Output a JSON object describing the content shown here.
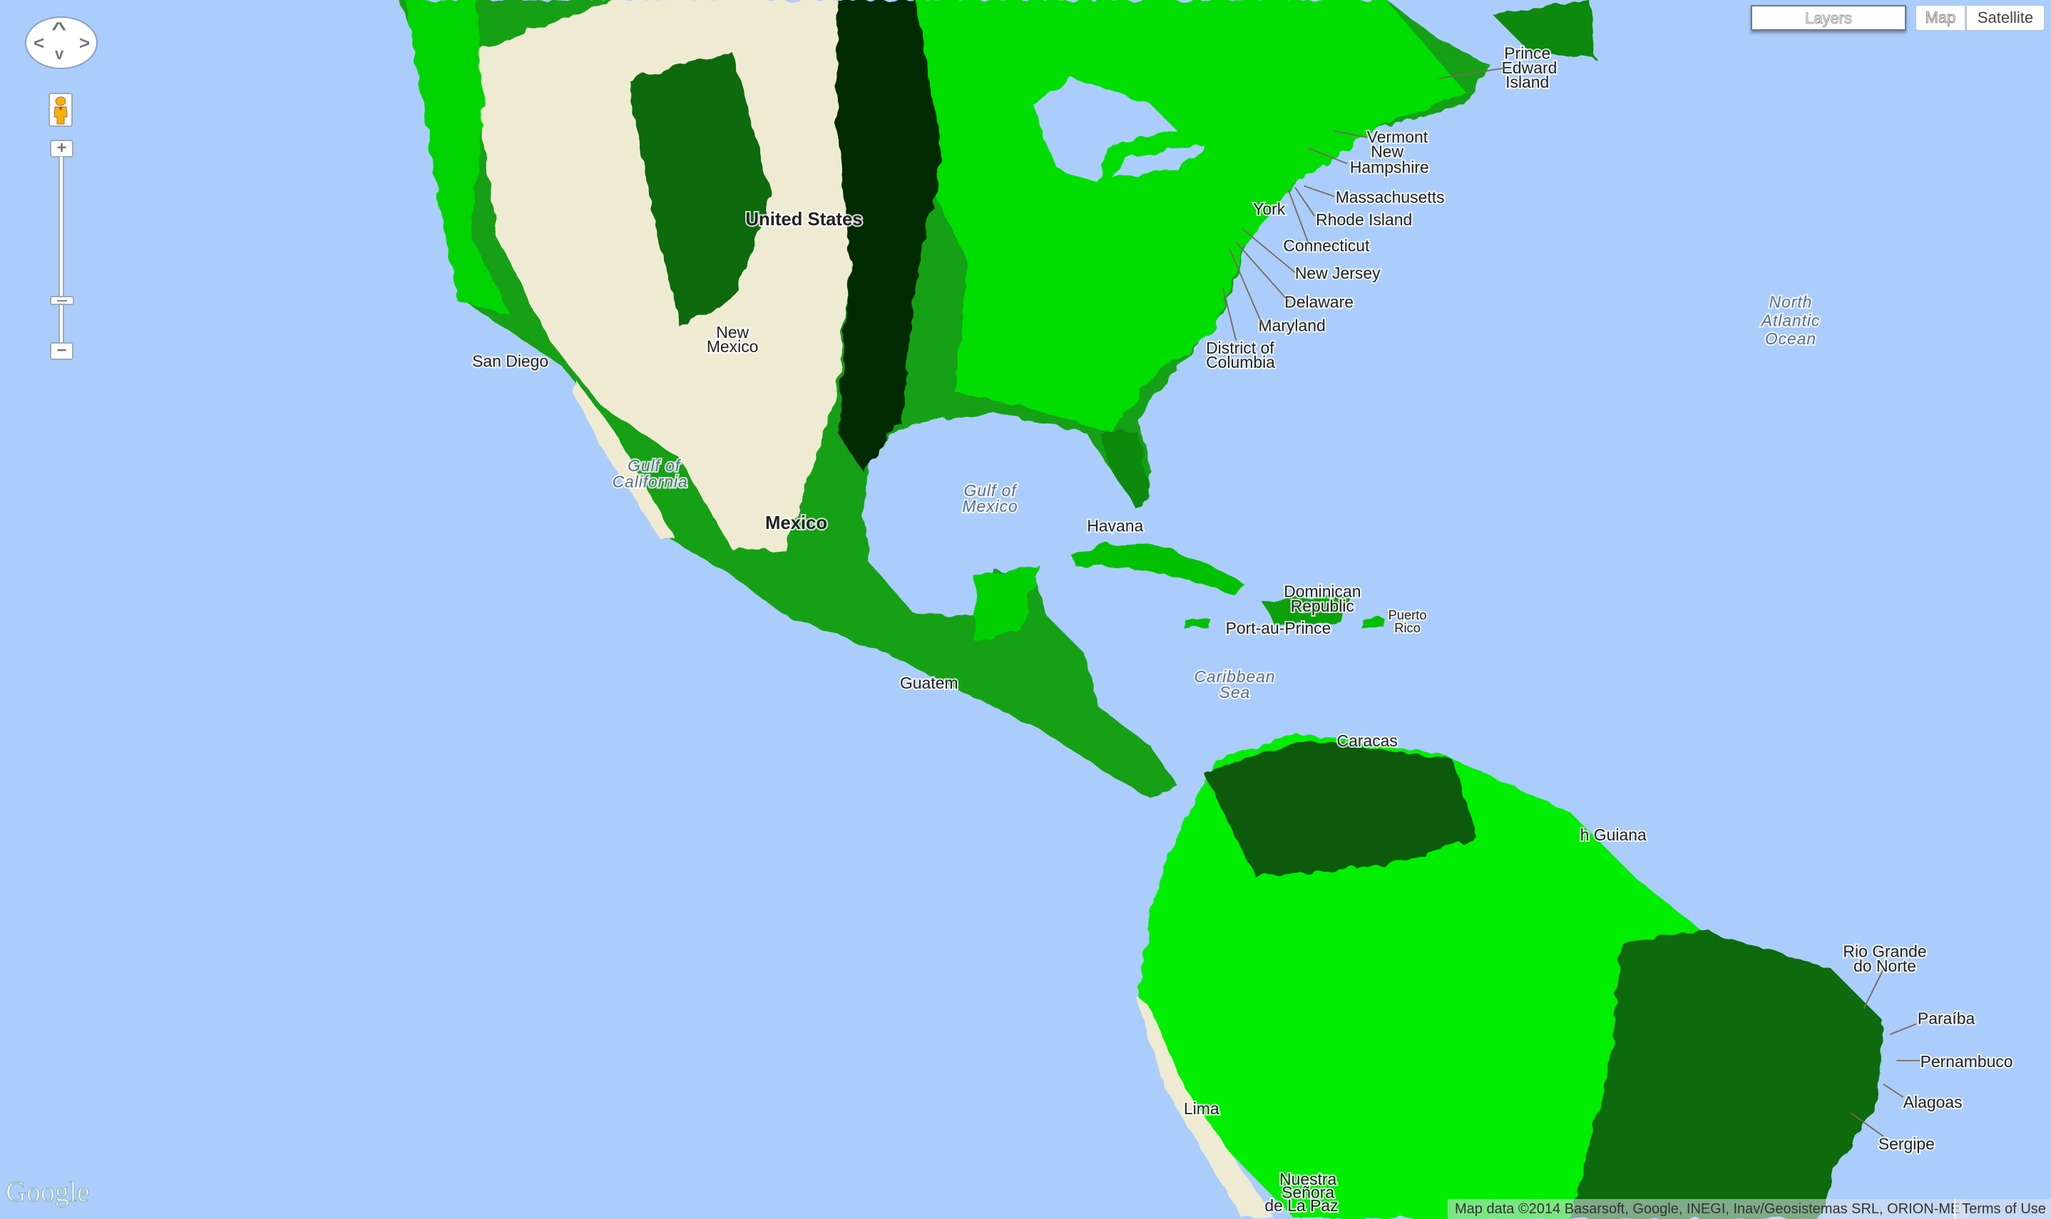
{
  "map": {
    "colors": {
      "water": "#abcdfb",
      "vegetation_high": "#00ee00",
      "vegetation_mid": "#1a9a1a",
      "vegetation_low": "#003300",
      "bare": "#f2eed8"
    },
    "labels": {
      "prince_edward_island": [
        "Prince",
        "Edward",
        "Island"
      ],
      "vermont": "Vermont",
      "new_hampshire": [
        "New",
        "Hampshire"
      ],
      "massachusetts": "Massachusetts",
      "rhode_island": "Rhode Island",
      "connecticut": "Connecticut",
      "new_jersey": "New Jersey",
      "delaware": "Delaware",
      "maryland": "Maryland",
      "district_of_columbia": [
        "District of",
        "Columbia"
      ],
      "york": "York",
      "north_atlantic_ocean": [
        "North",
        "Atlantic",
        "Ocean"
      ],
      "gulf_of_mexico": [
        "Gulf of",
        "Mexico"
      ],
      "caribbean_sea": [
        "Caribbean",
        "Sea"
      ],
      "gulf_of_california": [
        "Gulf of",
        "California"
      ],
      "havana": "Havana",
      "dominican_republic": [
        "Dominican",
        "Republic"
      ],
      "port_au_prince": "Port-au-Prince",
      "puerto_rico": [
        "Puerto",
        "Rico"
      ],
      "caracas": "Caracas",
      "guiana": "h Guiana",
      "rio_grande_do_norte": [
        "Rio Grande",
        "do Norte"
      ],
      "paraiba": "Paraíba",
      "pernambuco": "Pernambuco",
      "alagoas": "Alagoas",
      "sergipe": "Sergipe",
      "san_diego": "San Diego",
      "united_states": "United States",
      "mexico": "Mexico",
      "new_mexico": [
        "New",
        "Mexico"
      ],
      "guatemala": "Guatem",
      "lima": "Lima",
      "la_paz": [
        "Nuestra",
        "Señora",
        "de La Paz"
      ]
    }
  },
  "controls": {
    "pan": {
      "up": "^",
      "down": "v",
      "left": "<",
      "right": ">"
    },
    "zoom_in": "+",
    "zoom_out": "−",
    "zoom_level_fraction": 0.22,
    "layers_label": "Layers",
    "map_type": {
      "map": "Map",
      "satellite": "Satellite",
      "selected": "Satellite"
    }
  },
  "footer": {
    "logo": "Google",
    "attribution": "Map data ©2014 Basarsoft, Google, INEGI, Inav/Geosistemas SRL, ORION-ME",
    "terms": "Terms of Use"
  }
}
